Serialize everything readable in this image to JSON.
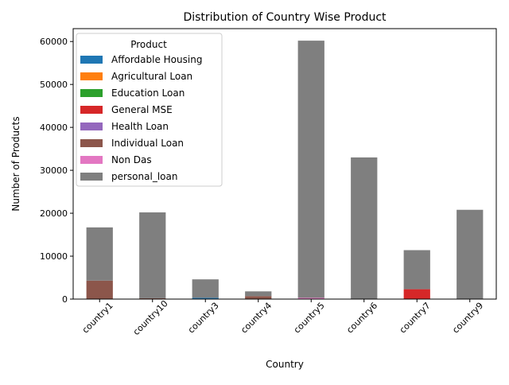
{
  "chart_data": {
    "type": "bar",
    "stacked": true,
    "title": "Distribution of Country Wise Product",
    "xlabel": "Country",
    "ylabel": "Number of Products",
    "ylim": [
      0,
      63000
    ],
    "yticks": [
      0,
      10000,
      20000,
      30000,
      40000,
      50000,
      60000
    ],
    "grid": false,
    "legend_title": "Product",
    "legend_position": "upper-left",
    "categories": [
      "country1",
      "country10",
      "country3",
      "country4",
      "country5",
      "country6",
      "country7",
      "country9"
    ],
    "series": [
      {
        "name": "Affordable Housing",
        "color": "#1f77b4",
        "values": [
          0,
          0,
          300,
          0,
          0,
          0,
          0,
          0
        ]
      },
      {
        "name": "Agricultural Loan",
        "color": "#ff7f0e",
        "values": [
          0,
          0,
          0,
          0,
          0,
          0,
          0,
          0
        ]
      },
      {
        "name": "Education Loan",
        "color": "#2ca02c",
        "values": [
          0,
          0,
          0,
          0,
          0,
          0,
          0,
          0
        ]
      },
      {
        "name": "General MSE",
        "color": "#d62728",
        "values": [
          0,
          0,
          0,
          0,
          0,
          0,
          2300,
          0
        ]
      },
      {
        "name": "Health Loan",
        "color": "#9467bd",
        "values": [
          0,
          0,
          0,
          0,
          0,
          0,
          0,
          0
        ]
      },
      {
        "name": "Individual Loan",
        "color": "#8c564b",
        "values": [
          4300,
          200,
          0,
          700,
          0,
          0,
          0,
          0
        ]
      },
      {
        "name": "Non Das",
        "color": "#e377c2",
        "values": [
          0,
          0,
          0,
          0,
          300,
          0,
          0,
          0
        ]
      },
      {
        "name": "personal_loan",
        "color": "#7f7f7f",
        "values": [
          12400,
          20000,
          4300,
          1100,
          59900,
          33000,
          9100,
          20800
        ]
      }
    ]
  }
}
